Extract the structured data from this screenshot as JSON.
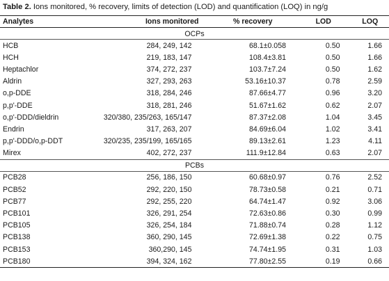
{
  "caption": {
    "label": "Table 2.",
    "text": " Ions monitored, % recovery, limits of detection (LOD) and quantification (LOQ) in ng/g"
  },
  "headers": {
    "analytes": "Analytes",
    "ions": "Ions monitored",
    "recovery": "% recovery",
    "lod": "LOD",
    "loq": "LOQ"
  },
  "groups": {
    "ocp": "OCPs",
    "pcb": "PCBs"
  },
  "ocps": [
    {
      "name": "HCB",
      "ions": "284, 249, 142",
      "recovery": "68.1±0.058",
      "lod": "0.50",
      "loq": "1.66"
    },
    {
      "name": "HCH",
      "ions": "219, 183, 147",
      "recovery": "108.4±3.81",
      "lod": "0.50",
      "loq": "1.66"
    },
    {
      "name": "Heptachlor",
      "ions": "374, 272, 237",
      "recovery": "103.7±7.24",
      "lod": "0.50",
      "loq": "1.62"
    },
    {
      "name": "Aldrin",
      "ions": "327, 293, 263",
      "recovery": "53.16±10.37",
      "lod": "0.78",
      "loq": "2.59"
    },
    {
      "name": "o,p-DDE",
      "ions": "318, 284, 246",
      "recovery": "87.66±4.77",
      "lod": "0.96",
      "loq": "3.20"
    },
    {
      "name": "p,p'-DDE",
      "ions": "318, 281, 246",
      "recovery": "51.67±1.62",
      "lod": "0.62",
      "loq": "2.07"
    },
    {
      "name": "o,p'-DDD/dieldrin",
      "ions": "320/380, 235/263, 165/147",
      "recovery": "87.37±2.08",
      "lod": "1.04",
      "loq": "3.45"
    },
    {
      "name": "Endrin",
      "ions": "317, 263, 207",
      "recovery": "84.69±6.04",
      "lod": "1.02",
      "loq": "3.41"
    },
    {
      "name": "p,p'-DDD/o,p-DDT",
      "ions": "320/235, 235/199, 165/165",
      "recovery": "89.13±2.61",
      "lod": "1.23",
      "loq": "4.11"
    },
    {
      "name": "Mirex",
      "ions": "402, 272, 237",
      "recovery": "111.9±12.84",
      "lod": "0.63",
      "loq": "2.07"
    }
  ],
  "pcbs": [
    {
      "name": "PCB28",
      "ions": "256, 186, 150",
      "recovery": "60.68±0.97",
      "lod": "0.76",
      "loq": "2.52"
    },
    {
      "name": "PCB52",
      "ions": "292, 220, 150",
      "recovery": "78.73±0.58",
      "lod": "0.21",
      "loq": "0.71"
    },
    {
      "name": "PCB77",
      "ions": "292, 255, 220",
      "recovery": "64.74±1.47",
      "lod": "0.92",
      "loq": "3.06"
    },
    {
      "name": "PCB101",
      "ions": "326, 291, 254",
      "recovery": "72.63±0.86",
      "lod": "0.30",
      "loq": "0.99"
    },
    {
      "name": "PCB105",
      "ions": "326, 254, 184",
      "recovery": "71.88±0.74",
      "lod": "0.28",
      "loq": "1.12"
    },
    {
      "name": "PCB138",
      "ions": "360, 290, 145",
      "recovery": "72.69±1.38",
      "lod": "0.22",
      "loq": "0.75"
    },
    {
      "name": "PCB153",
      "ions": "360,290, 145",
      "recovery": "74.74±1.95",
      "lod": "0.31",
      "loq": "1.03"
    },
    {
      "name": "PCB180",
      "ions": "394, 324, 162",
      "recovery": "77.80±2.55",
      "lod": "0.19",
      "loq": "0.66"
    }
  ]
}
